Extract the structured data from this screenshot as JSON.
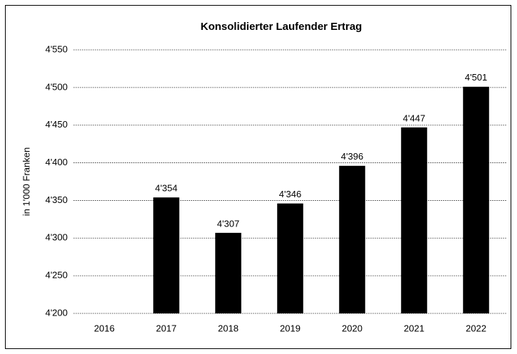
{
  "chart_data": {
    "type": "bar",
    "title": "Konsolidierter Laufender Ertrag",
    "y_label": "in 1'000 Franken",
    "categories": [
      "2016",
      "2017",
      "2018",
      "2019",
      "2020",
      "2021",
      "2022"
    ],
    "values": [
      null,
      4354,
      4307,
      4346,
      4396,
      4447,
      4501
    ],
    "value_labels": [
      null,
      "4'354",
      "4'307",
      "4'346",
      "4'396",
      "4'447",
      "4'501"
    ],
    "color": "#000000",
    "ylim": [
      4200,
      4550
    ],
    "yticks": [
      {
        "value": 4200,
        "label": "4'200"
      },
      {
        "value": 4250,
        "label": "4'250"
      },
      {
        "value": 4300,
        "label": "4'300"
      },
      {
        "value": 4350,
        "label": "4'350"
      },
      {
        "value": 4400,
        "label": "4'400"
      },
      {
        "value": 4450,
        "label": "4'450"
      },
      {
        "value": 4500,
        "label": "4'500"
      },
      {
        "value": 4550,
        "label": "4'550"
      }
    ],
    "grid": true
  }
}
